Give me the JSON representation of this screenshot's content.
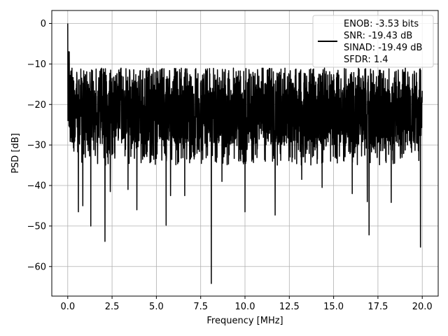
{
  "chart_data": {
    "type": "line",
    "xlabel": "Frequency [MHz]",
    "ylabel": "PSD [dB]",
    "xlim": [
      -0.9,
      20.9
    ],
    "ylim": [
      -67.3,
      3.2
    ],
    "xticks": [
      0.0,
      2.5,
      5.0,
      7.5,
      10.0,
      12.5,
      15.0,
      17.5,
      20.0
    ],
    "xtick_labels": [
      "0.0",
      "2.5",
      "5.0",
      "7.5",
      "10.0",
      "12.5",
      "15.0",
      "17.5",
      "20.0"
    ],
    "yticks": [
      0,
      -10,
      -20,
      -30,
      -40,
      -50,
      -60
    ],
    "ytick_labels": [
      "0",
      "−10",
      "−20",
      "−30",
      "−40",
      "−50",
      "−60"
    ],
    "grid": true,
    "legend_position": "top-right",
    "legend_entries": [
      "ENOB: -3.53 bits",
      "SNR: -19.43 dB",
      "SINAD: -19.49 dB",
      "SFDR: 1.4"
    ],
    "series": [
      {
        "color": "#000000",
        "x_range": [
          0,
          20
        ],
        "noise_floor": [
          -35,
          -11
        ],
        "peak": {
          "x": 0.0,
          "y": 0.0
        },
        "dips": [
          {
            "x": 0.6,
            "y": -46.5
          },
          {
            "x": 0.85,
            "y": -45.0
          },
          {
            "x": 1.3,
            "y": -50.0
          },
          {
            "x": 2.1,
            "y": -53.8
          },
          {
            "x": 2.4,
            "y": -41.5
          },
          {
            "x": 3.4,
            "y": -41.0
          },
          {
            "x": 3.9,
            "y": -46.0
          },
          {
            "x": 5.55,
            "y": -49.8
          },
          {
            "x": 5.8,
            "y": -42.5
          },
          {
            "x": 6.6,
            "y": -42.5
          },
          {
            "x": 8.1,
            "y": -64.2
          },
          {
            "x": 8.7,
            "y": -39.0
          },
          {
            "x": 10.0,
            "y": -46.5
          },
          {
            "x": 11.7,
            "y": -47.3
          },
          {
            "x": 13.2,
            "y": -38.5
          },
          {
            "x": 14.35,
            "y": -40.5
          },
          {
            "x": 16.05,
            "y": -42.0
          },
          {
            "x": 16.9,
            "y": -44.0
          },
          {
            "x": 17.0,
            "y": -52.2
          },
          {
            "x": 18.25,
            "y": -44.2
          },
          {
            "x": 19.9,
            "y": -55.2
          }
        ]
      }
    ]
  }
}
